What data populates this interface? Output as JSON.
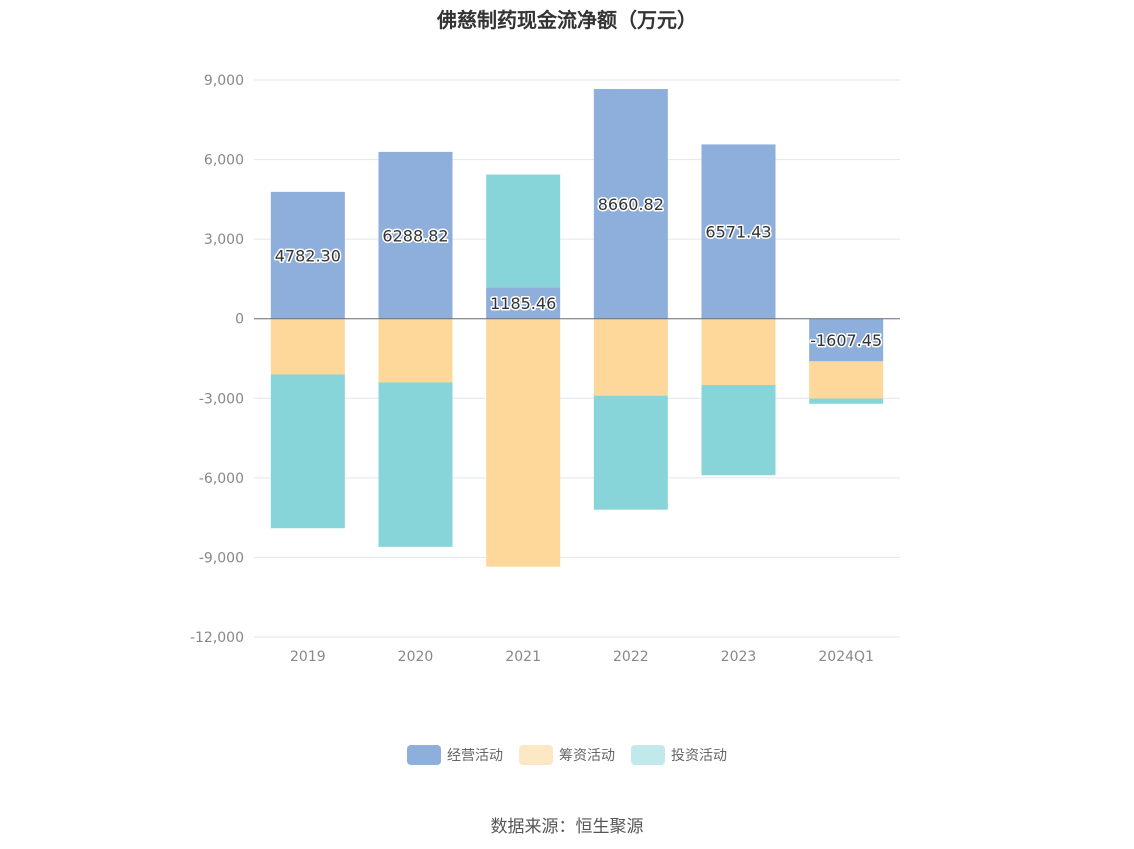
{
  "chart_data": {
    "type": "bar",
    "stacked": true,
    "title": "佛慈制药现金流净额（万元）",
    "categories": [
      "2019",
      "2020",
      "2021",
      "2022",
      "2023",
      "2024Q1"
    ],
    "series": [
      {
        "name": "经营活动",
        "color": "#8eaedb",
        "values": [
          4782.3,
          6288.82,
          1185.46,
          8660.82,
          6571.43,
          -1607.45
        ],
        "labels": [
          "4782.30",
          "6288.82",
          "1185.46",
          "8660.82",
          "6571.43",
          "-1607.45"
        ]
      },
      {
        "name": "筹资活动",
        "color": "#fed89b",
        "values": [
          -2100,
          -2400,
          -9350,
          -2900,
          -2500,
          -1400
        ]
      },
      {
        "name": "投资活动",
        "color": "#88d5d9",
        "values": [
          -5800,
          -6200,
          4250,
          -4300,
          -3400,
          -200
        ]
      }
    ],
    "ylim": [
      -12000,
      9000
    ],
    "yticks": [
      9000,
      6000,
      3000,
      0,
      -3000,
      -6000,
      -9000,
      -12000
    ],
    "ytick_labels": [
      "9,000",
      "6,000",
      "3,000",
      "0",
      "-3,000",
      "-6,000",
      "-9,000",
      "-12,000"
    ],
    "grid": true,
    "legend_position": "bottom",
    "legend_swatch_colors": [
      "#8eaedb",
      "#fde8c6",
      "#c1e9eb"
    ],
    "source": "数据来源：恒生聚源"
  }
}
